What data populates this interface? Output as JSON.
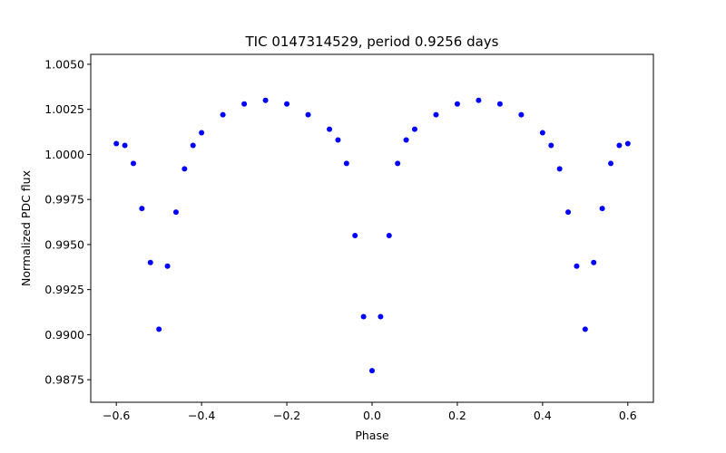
{
  "chart_data": {
    "type": "scatter",
    "title": "TIC 0147314529, period 0.9256 days",
    "xlabel": "Phase",
    "ylabel": "Normalized PDC flux",
    "xlim": [
      -0.66,
      0.66
    ],
    "ylim": [
      0.98625,
      1.00555
    ],
    "x_ticks": [
      -0.6,
      -0.4,
      -0.2,
      0.0,
      0.2,
      0.4,
      0.6
    ],
    "x_tick_labels": [
      "−0.6",
      "−0.4",
      "−0.2",
      "0.0",
      "0.2",
      "0.4",
      "0.6"
    ],
    "y_ticks": [
      0.9875,
      0.99,
      0.9925,
      0.995,
      0.9975,
      1.0,
      1.0025,
      1.005
    ],
    "y_tick_labels": [
      "0.9875",
      "0.9900",
      "0.9925",
      "0.9950",
      "0.9975",
      "1.0000",
      "1.0025",
      "1.0050"
    ],
    "grid": false,
    "legend": "none",
    "series": [
      {
        "marker_color": "#0000ff",
        "x": [
          -0.6,
          -0.58,
          -0.56,
          -0.54,
          -0.52,
          -0.5,
          -0.48,
          -0.46,
          -0.44,
          -0.42,
          -0.4,
          -0.35,
          -0.3,
          -0.25,
          -0.2,
          -0.15,
          -0.1,
          -0.08,
          -0.06,
          -0.04,
          -0.02,
          0.0,
          0.02,
          0.04,
          0.06,
          0.08,
          0.1,
          0.15,
          0.2,
          0.25,
          0.3,
          0.35,
          0.4,
          0.42,
          0.44,
          0.46,
          0.48,
          0.5,
          0.52,
          0.54,
          0.56,
          0.58,
          0.6
        ],
        "y": [
          1.0006,
          1.0005,
          0.9995,
          0.997,
          0.994,
          0.9903,
          0.9938,
          0.9968,
          0.9992,
          1.0005,
          1.0012,
          1.0022,
          1.0028,
          1.003,
          1.0028,
          1.0022,
          1.0014,
          1.0008,
          0.9995,
          0.9955,
          0.991,
          0.988,
          0.991,
          0.9955,
          0.9995,
          1.0008,
          1.0014,
          1.0022,
          1.0028,
          1.003,
          1.0028,
          1.0022,
          1.0012,
          1.0005,
          0.9992,
          0.9968,
          0.9938,
          0.9903,
          0.994,
          0.997,
          0.9995,
          1.0005,
          1.0006
        ]
      }
    ]
  }
}
